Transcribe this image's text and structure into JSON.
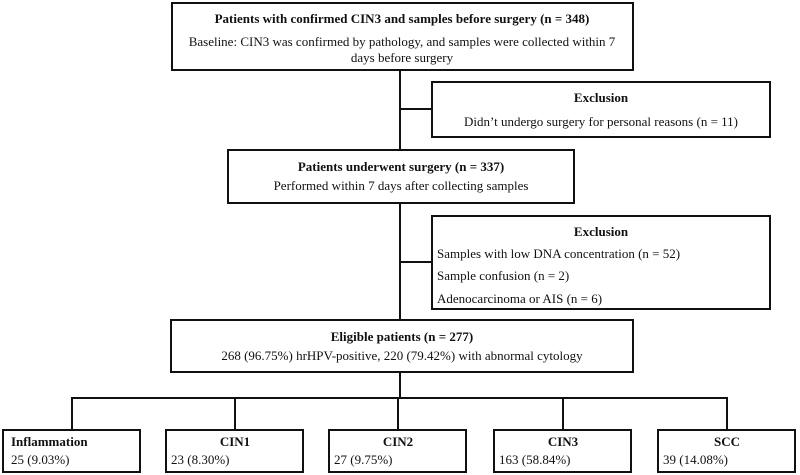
{
  "nodes": [
    {
      "title": "Patients with confirmed CIN3 and samples before surgery (n = 348)",
      "lines": [
        "Baseline: CIN3 was confirmed by pathology, and samples were collected within 7",
        "days before surgery"
      ]
    },
    {
      "title": "Exclusion",
      "lines": [
        "Didn’t undergo surgery for personal reasons (n = 11)"
      ]
    },
    {
      "title": "Patients underwent surgery (n = 337)",
      "lines": [
        "Performed within 7 days after collecting samples"
      ]
    },
    {
      "title": "Exclusion",
      "lines": [
        "Samples with low DNA concentration (n = 52)",
        "Sample confusion (n = 2)",
        "Adenocarcinoma or AIS (n = 6)"
      ]
    },
    {
      "title": "Eligible patients (n = 277)",
      "lines": [
        "268 (96.75%) hrHPV-positive, 220 (79.42%) with abnormal cytology"
      ]
    },
    {
      "title": "Inflammation",
      "lines": [
        "25 (9.03%)"
      ]
    },
    {
      "title": "CIN1",
      "lines": [
        "23 (8.30%)"
      ]
    },
    {
      "title": "CIN2",
      "lines": [
        "27 (9.75%)"
      ]
    },
    {
      "title": "CIN3",
      "lines": [
        "163 (58.84%)"
      ]
    },
    {
      "title": "SCC",
      "lines": [
        "39 (14.08%)"
      ]
    }
  ]
}
